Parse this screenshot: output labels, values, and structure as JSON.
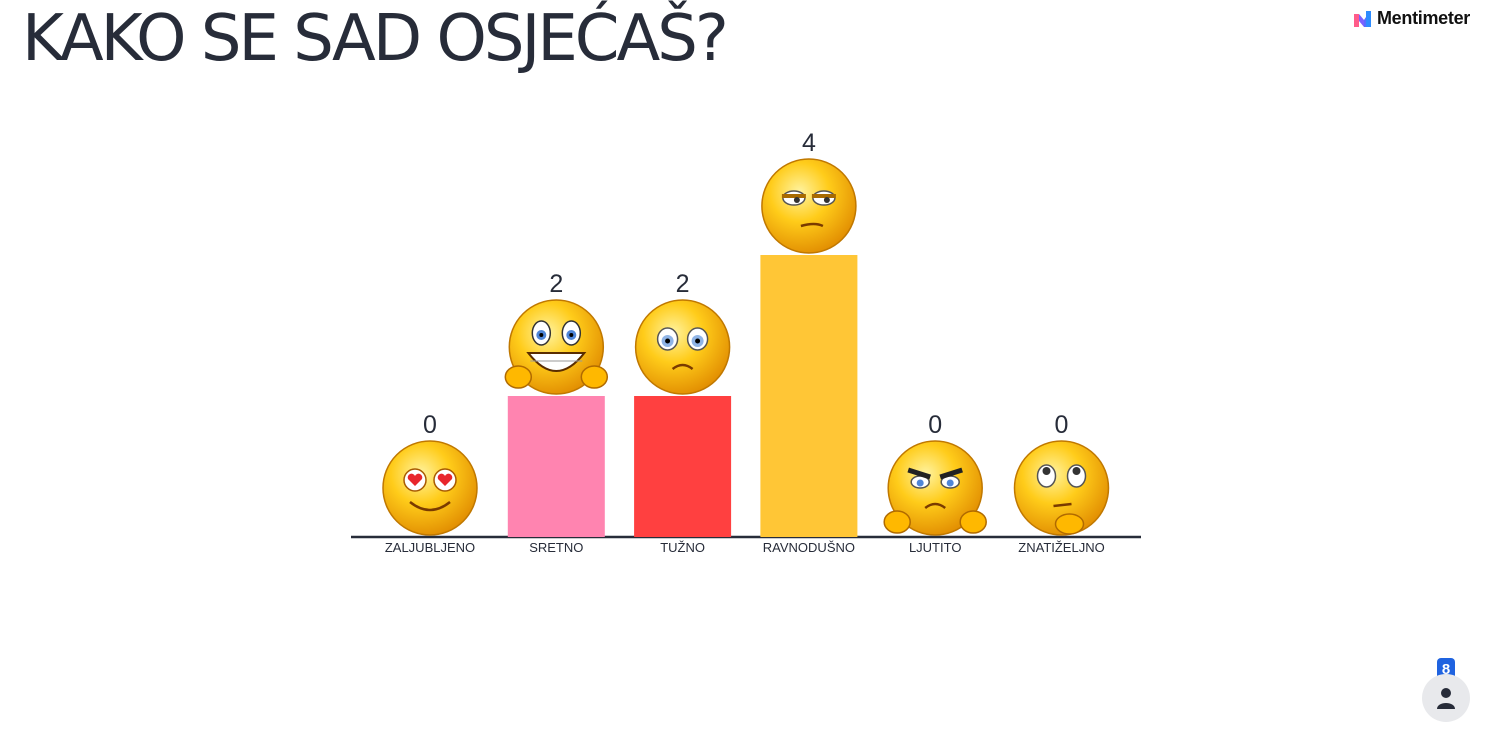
{
  "header": {
    "title": "KAKO SE SAD OSJEĆAŠ?"
  },
  "brand": {
    "name": "Mentimeter"
  },
  "participants": {
    "count": "8",
    "icon": "person-icon"
  },
  "chart_data": {
    "type": "bar",
    "categories": [
      "ZALJUBLJENO",
      "SRETNO",
      "TUŽNO",
      "RAVNODUŠNO",
      "LJUTITO",
      "ZNATIŽELJNO"
    ],
    "values": [
      0,
      2,
      2,
      4,
      0,
      0
    ],
    "colors": [
      "#6f91d8",
      "#ff84b0",
      "#ff4040",
      "#ffc636",
      "#4f8f5e",
      "#f5a623"
    ],
    "emojis": [
      "heart-eyes-emoji",
      "grinning-thumbs-up-emoji",
      "sad-emoji",
      "unamused-emoji",
      "angry-thumbs-down-emoji",
      "thinking-emoji"
    ],
    "ylim": [
      0,
      4
    ],
    "grid": false,
    "data_labels": true
  }
}
